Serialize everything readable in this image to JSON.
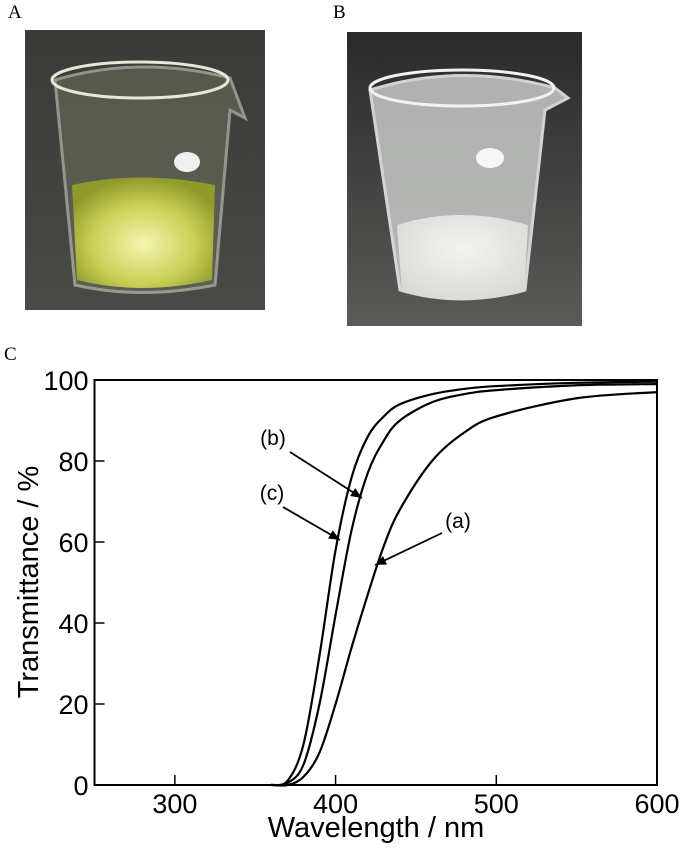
{
  "panels": [
    "A",
    "B",
    "C"
  ],
  "chart_data": {
    "type": "line",
    "xlabel": "Wavelength / nm",
    "ylabel": "Transmittance / %",
    "x": [
      360,
      370,
      380,
      390,
      400,
      410,
      420,
      430,
      440,
      460,
      480,
      500,
      550,
      600
    ],
    "series": [
      {
        "name": "(a)",
        "color": "#000000",
        "values": [
          0,
          0,
          2,
          8,
          20,
          34,
          47,
          59,
          68,
          80,
          87,
          91,
          95.5,
          97
        ]
      },
      {
        "name": "(b)",
        "color": "#000000",
        "values": [
          0,
          0.5,
          5,
          20,
          42,
          63,
          77,
          85,
          90,
          94.5,
          96.5,
          97.5,
          98.7,
          99
        ]
      },
      {
        "name": "(c)",
        "color": "#000000",
        "values": [
          0,
          1,
          10,
          32,
          58,
          76,
          86,
          91,
          94,
          96.5,
          97.8,
          98.5,
          99.3,
          99.6
        ]
      }
    ],
    "xlim": [
      250,
      600
    ],
    "xticks": [
      300,
      400,
      500,
      600
    ],
    "ylim": [
      0,
      100
    ],
    "yticks": [
      0,
      20,
      40,
      60,
      80,
      100
    ]
  }
}
